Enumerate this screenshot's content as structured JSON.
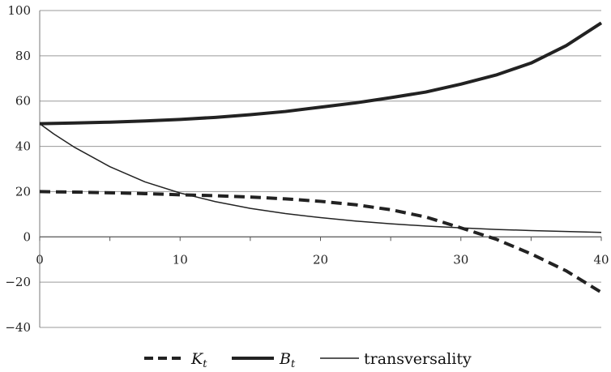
{
  "chart_data": {
    "type": "line",
    "title": "",
    "xlabel": "",
    "ylabel": "",
    "xlim": [
      0,
      40
    ],
    "ylim": [
      -40,
      100
    ],
    "x_ticks": [
      0,
      10,
      20,
      30,
      40
    ],
    "y_ticks": [
      -40,
      -20,
      0,
      20,
      40,
      60,
      80,
      100
    ],
    "x_tick_labels": [
      "0",
      "10",
      "20",
      "30",
      "40"
    ],
    "y_tick_labels": [
      "−40",
      "−20",
      "0",
      "20",
      "40",
      "60",
      "80",
      "100"
    ],
    "grid": "horizontal",
    "legend_position": "bottom",
    "series": [
      {
        "name": "K",
        "name_subscript": "t",
        "style": "dashed-thick",
        "color": "#222222",
        "x": [
          0,
          2.5,
          5,
          7.5,
          10,
          12.5,
          15,
          17.5,
          20,
          22.5,
          25,
          27.5,
          30,
          32.5,
          35,
          37.5,
          40
        ],
        "values": [
          20,
          19.8,
          19.5,
          19.1,
          18.6,
          18.2,
          17.6,
          16.8,
          15.7,
          14.2,
          12.0,
          8.8,
          4.0,
          -1.0,
          -7.5,
          -15.0,
          -24.5
        ]
      },
      {
        "name": "B",
        "name_subscript": "t",
        "style": "solid-thick",
        "color": "#222222",
        "x": [
          0,
          2.5,
          5,
          7.5,
          10,
          12.5,
          15,
          17.5,
          20,
          22.5,
          25,
          27.5,
          30,
          32.5,
          35,
          37.5,
          40
        ],
        "values": [
          50,
          50.3,
          50.7,
          51.2,
          51.9,
          52.8,
          54.0,
          55.4,
          57.3,
          59.2,
          61.5,
          64.0,
          67.5,
          71.5,
          76.8,
          84.5,
          94.5
        ]
      },
      {
        "name": "transversality",
        "style": "solid-thin",
        "color": "#222222",
        "x": [
          0,
          1,
          2.5,
          5,
          7.5,
          10,
          12.5,
          15,
          17.5,
          20,
          22.5,
          25,
          27.5,
          30,
          32.5,
          35,
          37.5,
          40
        ],
        "values": [
          50,
          45.5,
          39.5,
          31.0,
          24.3,
          19.4,
          15.6,
          12.6,
          10.3,
          8.5,
          7.0,
          5.8,
          4.8,
          4.0,
          3.3,
          2.8,
          2.4,
          2.0
        ]
      }
    ]
  }
}
